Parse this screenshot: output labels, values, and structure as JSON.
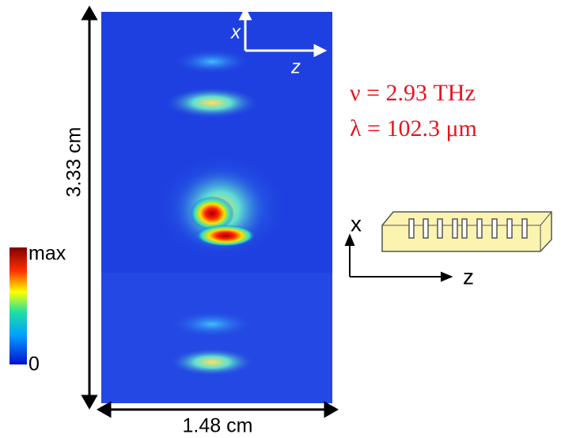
{
  "image": {
    "height_label": "3.33 cm",
    "width_label": "1.48 cm",
    "inset_axes": {
      "x": "x",
      "z": "z"
    }
  },
  "colorbar": {
    "max_label": "max",
    "min_label": "0"
  },
  "parameters": {
    "frequency": "ν = 2.93 THz",
    "wavelength": "λ = 102.3 μm"
  },
  "device_axes": {
    "x": "x",
    "z": "z"
  }
}
